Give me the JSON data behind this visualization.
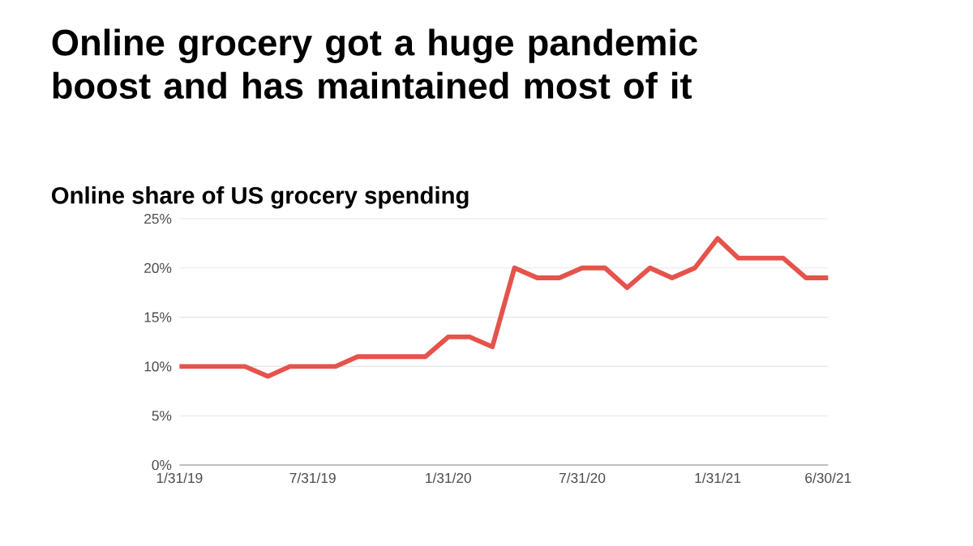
{
  "chart_data": {
    "type": "line",
    "title": "Online grocery got a huge pandemic boost and has maintained most of it",
    "subtitle": "Online share of US grocery spending",
    "x": [
      "2019-01-31",
      "2019-02-28",
      "2019-03-31",
      "2019-04-30",
      "2019-05-31",
      "2019-06-30",
      "2019-07-31",
      "2019-08-31",
      "2019-09-30",
      "2019-10-31",
      "2019-11-30",
      "2019-12-31",
      "2020-01-31",
      "2020-02-29",
      "2020-03-31",
      "2020-04-30",
      "2020-05-31",
      "2020-06-30",
      "2020-07-31",
      "2020-08-31",
      "2020-09-30",
      "2020-10-31",
      "2020-11-30",
      "2020-12-31",
      "2021-01-31",
      "2021-02-28",
      "2021-03-31",
      "2021-04-30",
      "2021-05-31",
      "2021-06-30"
    ],
    "series": [
      {
        "color": "#e5534b",
        "values": [
          10,
          10,
          10,
          10,
          9,
          10,
          10,
          10,
          11,
          11,
          11,
          11,
          13,
          13,
          12,
          20,
          19,
          19,
          20,
          20,
          18,
          20,
          19,
          20,
          23,
          21,
          21,
          21,
          19,
          19
        ]
      }
    ],
    "xlim": [
      "2019-01-31",
      "2021-06-30"
    ],
    "xticks": [
      {
        "value": "2019-01-31",
        "label": "1/31/19"
      },
      {
        "value": "2019-07-31",
        "label": "7/31/19"
      },
      {
        "value": "2020-01-31",
        "label": "1/31/20"
      },
      {
        "value": "2020-07-31",
        "label": "7/31/20"
      },
      {
        "value": "2021-01-31",
        "label": "1/31/21"
      },
      {
        "value": "2021-06-30",
        "label": "6/30/21"
      }
    ],
    "ylim": [
      0,
      25
    ],
    "yticks": [
      {
        "value": 0,
        "label": "0%"
      },
      {
        "value": 5,
        "label": "5%"
      },
      {
        "value": 10,
        "label": "10%"
      },
      {
        "value": 15,
        "label": "15%"
      },
      {
        "value": 20,
        "label": "20%"
      },
      {
        "value": 25,
        "label": "25%"
      }
    ],
    "grid": "y",
    "marker": "none",
    "line_style": "solid"
  }
}
